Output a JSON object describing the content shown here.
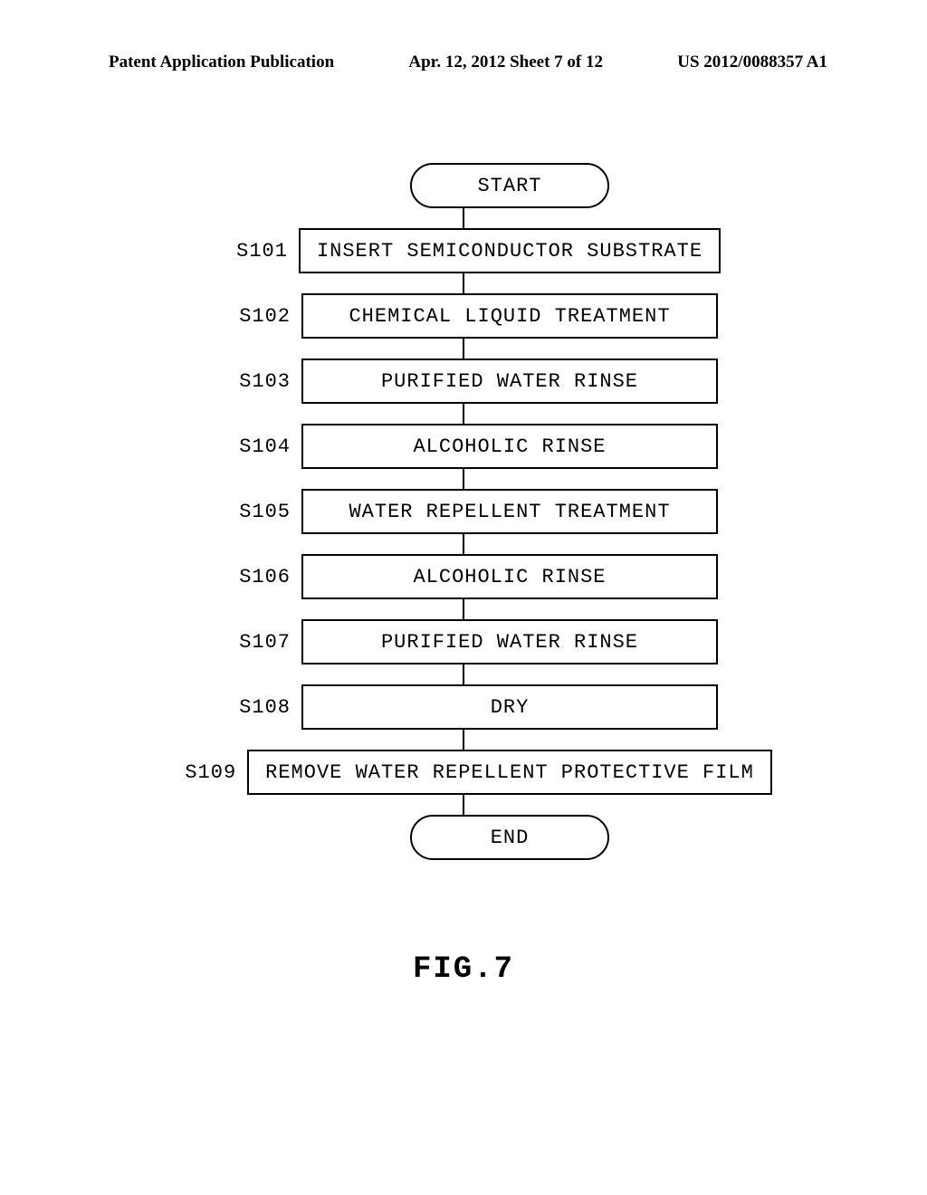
{
  "header": {
    "left": "Patent Application Publication",
    "center": "Apr. 12, 2012  Sheet 7 of 12",
    "right": "US 2012/0088357 A1"
  },
  "flowchart": {
    "type": "flowchart",
    "background_color": "#ffffff",
    "border_color": "#000000",
    "border_width": 2,
    "font_family": "Courier New",
    "box_fontsize": 22,
    "label_fontsize": 22,
    "connector_height": 22,
    "terminal_radius": 26,
    "start": {
      "label": "START"
    },
    "steps": [
      {
        "id": "S101",
        "text": "INSERT SEMICONDUCTOR SUBSTRATE",
        "wide": false
      },
      {
        "id": "S102",
        "text": "CHEMICAL LIQUID TREATMENT",
        "wide": false
      },
      {
        "id": "S103",
        "text": "PURIFIED WATER RINSE",
        "wide": false
      },
      {
        "id": "S104",
        "text": "ALCOHOLIC RINSE",
        "wide": false
      },
      {
        "id": "S105",
        "text": "WATER REPELLENT TREATMENT",
        "wide": false
      },
      {
        "id": "S106",
        "text": "ALCOHOLIC RINSE",
        "wide": false
      },
      {
        "id": "S107",
        "text": "PURIFIED WATER RINSE",
        "wide": false
      },
      {
        "id": "S108",
        "text": "DRY",
        "wide": false
      },
      {
        "id": "S109",
        "text": "REMOVE WATER REPELLENT PROTECTIVE FILM",
        "wide": true
      }
    ],
    "end": {
      "label": "END"
    }
  },
  "figure_label": "FIG.7"
}
